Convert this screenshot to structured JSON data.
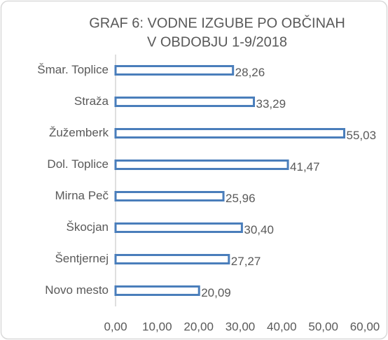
{
  "chart_data": {
    "type": "bar",
    "orientation": "horizontal",
    "title": [
      "GRAF 6: VODNE IZGUBE PO OBČINAH",
      "V OBDOBJU 1-9/2018"
    ],
    "categories": [
      "Šmar. Toplice",
      "Straža",
      "Žužemberk",
      "Dol. Toplice",
      "Mirna Peč",
      "Škocjan",
      "Šentjernej",
      "Novo mesto"
    ],
    "values": [
      28.26,
      33.29,
      55.03,
      41.47,
      25.96,
      30.4,
      27.27,
      20.09
    ],
    "value_labels": [
      "28,26",
      "33,29",
      "55,03",
      "41,47",
      "25,96",
      "30,40",
      "27,27",
      "20,09"
    ],
    "color": "#4a7ebb",
    "xlim": [
      0,
      60
    ],
    "xticks": [
      {
        "value": 0,
        "label": "0,00"
      },
      {
        "value": 10,
        "label": "10,00"
      },
      {
        "value": 20,
        "label": "20,00"
      },
      {
        "value": 30,
        "label": "30,00"
      },
      {
        "value": 40,
        "label": "40,00"
      },
      {
        "value": 50,
        "label": "50,00"
      },
      {
        "value": 60,
        "label": "60,00"
      }
    ],
    "grid": false
  }
}
